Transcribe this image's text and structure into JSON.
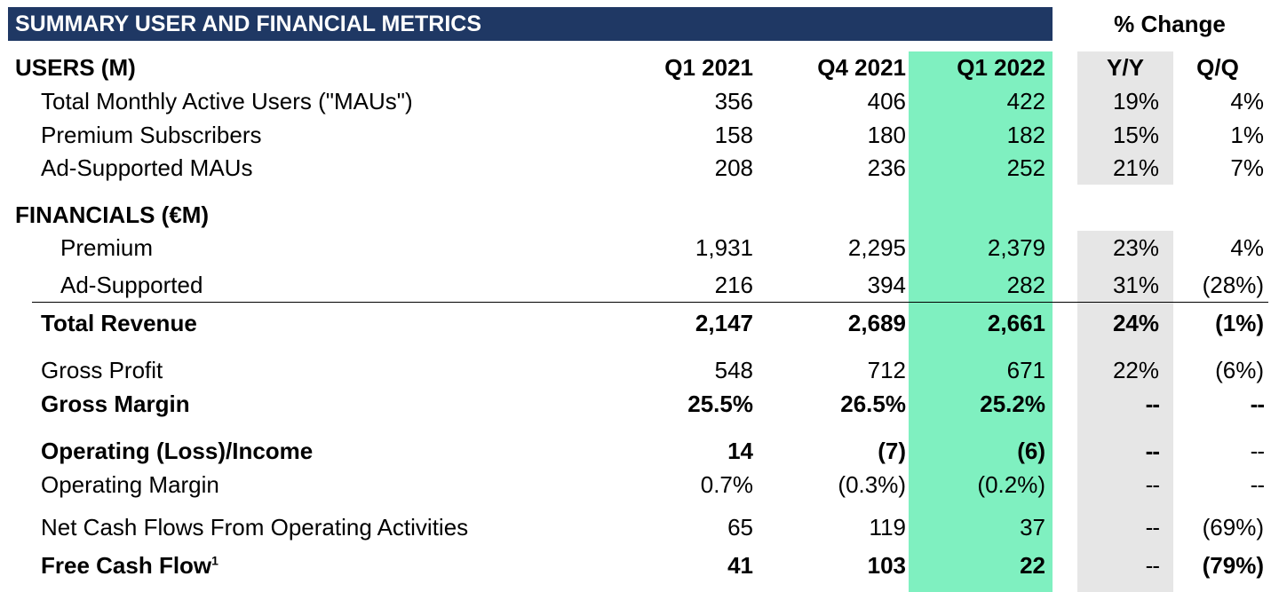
{
  "title": "SUMMARY USER AND FINANCIAL METRICS",
  "pct_change_label": "% Change",
  "highlight_color": "#7ff0c0",
  "title_bar_color": "#1f3864",
  "header": {
    "section": "USERS (M)",
    "q1_2021": "Q1 2021",
    "q4_2021": "Q4 2021",
    "q1_2022": "Q1 2022",
    "yy": "Y/Y",
    "qq": "Q/Q"
  },
  "rows": [
    {
      "label": "Total Monthly Active Users (\"MAUs\")",
      "q1_2021": "356",
      "q4_2021": "406",
      "q1_2022": "422",
      "yy": "19%",
      "qq": "4%"
    },
    {
      "label": "Premium Subscribers",
      "q1_2021": "158",
      "q4_2021": "180",
      "q1_2022": "182",
      "yy": "15%",
      "qq": "1%"
    },
    {
      "label": "Ad-Supported MAUs",
      "q1_2021": "208",
      "q4_2021": "236",
      "q1_2022": "252",
      "yy": "21%",
      "qq": "7%"
    },
    {
      "label": "FINANCIALS (€M)"
    },
    {
      "label": "Premium",
      "q1_2021": "1,931",
      "q4_2021": "2,295",
      "q1_2022": "2,379",
      "yy": "23%",
      "qq": "4%"
    },
    {
      "label": "Ad-Supported",
      "q1_2021": "216",
      "q4_2021": "394",
      "q1_2022": "282",
      "yy": "31%",
      "qq": "(28%)"
    },
    {
      "label": "Total Revenue",
      "q1_2021": "2,147",
      "q4_2021": "2,689",
      "q1_2022": "2,661",
      "yy": "24%",
      "qq": "(1%)"
    },
    {
      "label": "Gross Profit",
      "q1_2021": "548",
      "q4_2021": "712",
      "q1_2022": "671",
      "yy": "22%",
      "qq": "(6%)"
    },
    {
      "label": "Gross Margin",
      "q1_2021": "25.5%",
      "q4_2021": "26.5%",
      "q1_2022": "25.2%",
      "yy": "--",
      "qq": "--"
    },
    {
      "label": "Operating (Loss)/Income",
      "q1_2021": "14",
      "q4_2021": "(7)",
      "q1_2022": "(6)",
      "yy": "--",
      "qq": "--"
    },
    {
      "label": "Operating Margin",
      "q1_2021": "0.7%",
      "q4_2021": "(0.3%)",
      "q1_2022": "(0.2%)",
      "yy": "--",
      "qq": "--"
    },
    {
      "label": "Net Cash Flows From Operating Activities",
      "q1_2021": "65",
      "q4_2021": "119",
      "q1_2022": "37",
      "yy": "--",
      "qq": "(69%)"
    },
    {
      "label": "Free Cash Flow",
      "footnote": "1",
      "q1_2021": "41",
      "q4_2021": "103",
      "q1_2022": "22",
      "yy": "--",
      "qq": "(79%)"
    }
  ]
}
